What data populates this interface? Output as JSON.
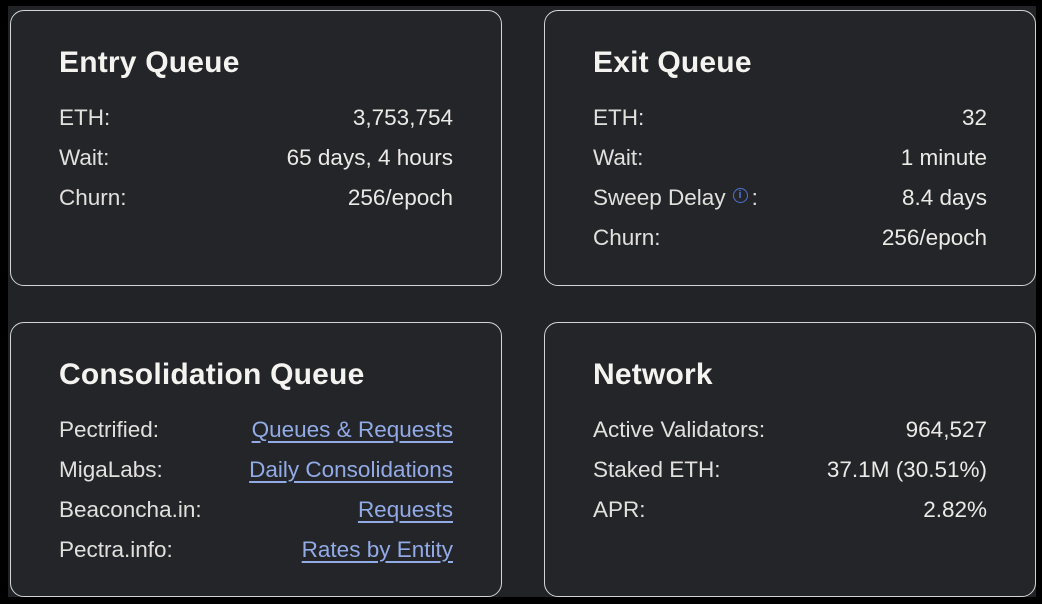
{
  "colors": {
    "outer_frame": "#000000",
    "background": "#212327",
    "card_background": "#232529",
    "card_border": "#d4d4d4",
    "title_text": "#f5f3f0",
    "body_text": "#e2e0dd",
    "link_blue": "#92aae6",
    "info_icon_blue": "#5173cf"
  },
  "icons": {
    "info_glyph": "i"
  },
  "cards": [
    {
      "id": "entry-queue",
      "title": "Entry Queue",
      "rows": [
        {
          "label": "ETH:",
          "value": "3,753,754"
        },
        {
          "label": "Wait:",
          "value": "65 days, 4 hours"
        },
        {
          "label": "Churn:",
          "value": "256/epoch"
        }
      ]
    },
    {
      "id": "exit-queue",
      "title": "Exit Queue",
      "rows": [
        {
          "label": "ETH:",
          "value": "32"
        },
        {
          "label": "Wait:",
          "value": "1 minute"
        },
        {
          "label": "Sweep Delay",
          "label_suffix": ":",
          "has_info_icon": true,
          "value": "8.4 days"
        },
        {
          "label": "Churn:",
          "value": "256/epoch"
        }
      ]
    },
    {
      "id": "consolidation-queue",
      "title": "Consolidation Queue",
      "rows": [
        {
          "label": "Pectrified:",
          "link": "Queues & Requests"
        },
        {
          "label": "MigaLabs:",
          "link": "Daily Consolidations"
        },
        {
          "label": "Beaconcha.in:",
          "link": "Requests"
        },
        {
          "label": "Pectra.info:",
          "link": "Rates by Entity"
        }
      ]
    },
    {
      "id": "network",
      "title": "Network",
      "rows": [
        {
          "label": "Active Validators:",
          "value": "964,527"
        },
        {
          "label": "Staked ETH:",
          "value": "37.1M (30.51%)"
        },
        {
          "label": "APR:",
          "value": "2.82%"
        }
      ]
    }
  ]
}
